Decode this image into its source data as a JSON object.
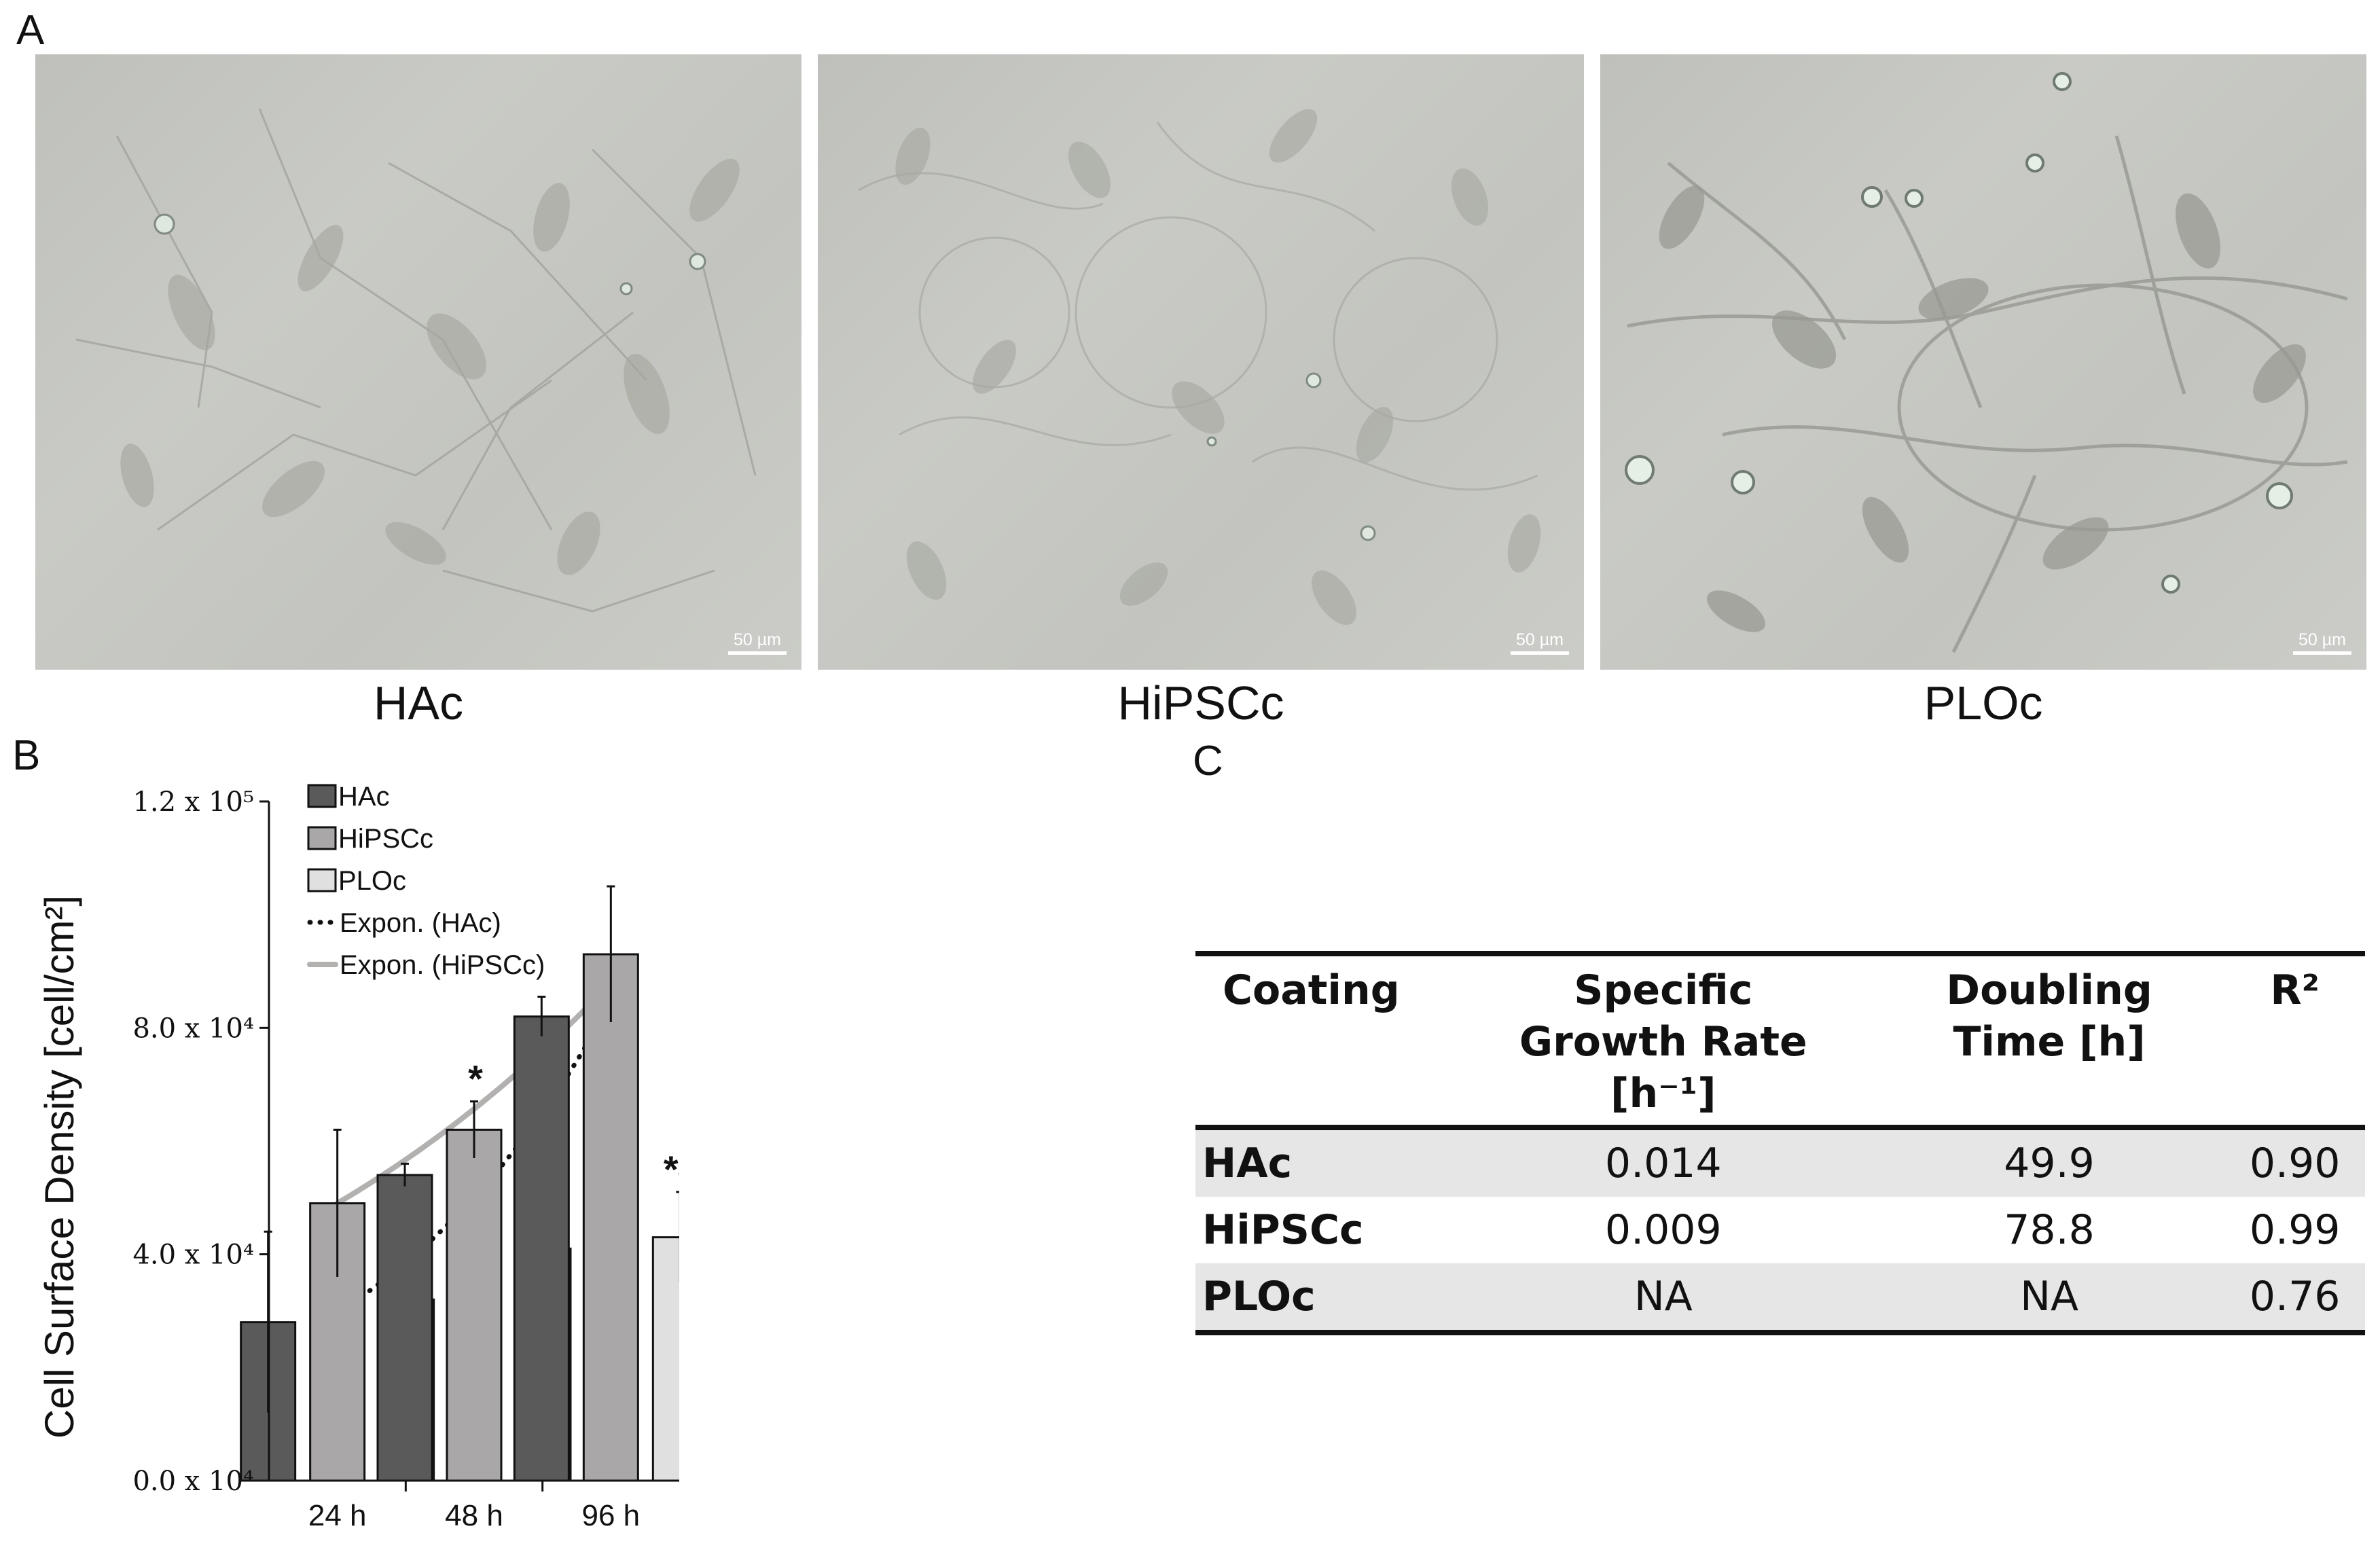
{
  "panel_labels": {
    "a": "A",
    "b": "B",
    "c": "C"
  },
  "micrographs": [
    {
      "caption": "HAc",
      "scale": "50 µm"
    },
    {
      "caption": "HiPSCc",
      "scale": "50 µm"
    },
    {
      "caption": "PLOc",
      "scale": "50 µm"
    }
  ],
  "chart_data": {
    "type": "bar",
    "ylabel": "Cell Surface Density [cell/cm²]",
    "ylim": [
      0,
      120000
    ],
    "yticks": [
      "0.0 x 10⁴",
      "4.0 x 10⁴",
      "8.0 x 10⁴",
      "1.2 x 10⁵"
    ],
    "categories": [
      "24 h",
      "48 h",
      "96 h"
    ],
    "series": [
      {
        "name": "HAc",
        "values": [
          28000,
          54000,
          82000
        ],
        "errors": [
          16000,
          2000,
          3500
        ],
        "markers": [
          "",
          "",
          ""
        ]
      },
      {
        "name": "HiPSCc",
        "values": [
          49000,
          62000,
          93000
        ],
        "errors": [
          13000,
          5000,
          12000
        ],
        "markers": [
          "",
          "*",
          ""
        ]
      },
      {
        "name": "PLOc",
        "values": [
          32000,
          41000,
          43000
        ],
        "errors": [
          7000,
          1500,
          8000
        ],
        "markers": [
          "",
          "*#",
          "*#"
        ]
      }
    ],
    "trendlines": [
      {
        "name": "Expon. (HAc)",
        "style": "dotted",
        "color": "#111111",
        "from": [
          24,
          29500
        ],
        "to": [
          96,
          84500
        ]
      },
      {
        "name": "Expon. (HiPSCc)",
        "style": "solid",
        "color": "#b3b0b0",
        "from": [
          24,
          49000
        ],
        "to": [
          96,
          88000
        ]
      }
    ],
    "colors": {
      "HAc": "#5a5a5a",
      "HiPSCc": "#a9a7a7",
      "PLOc": "#e0e0e0"
    },
    "legend_position": "top-left"
  },
  "table": {
    "headers": [
      "Coating",
      "Specific Growth Rate [h⁻¹]",
      "Doubling Time [h]",
      "R²"
    ],
    "rows": [
      [
        "HAc",
        "0.014",
        "49.9",
        "0.90"
      ],
      [
        "HiPSCc",
        "0.009",
        "78.8",
        "0.99"
      ],
      [
        "PLOc",
        "NA",
        "NA",
        "0.76"
      ]
    ]
  }
}
